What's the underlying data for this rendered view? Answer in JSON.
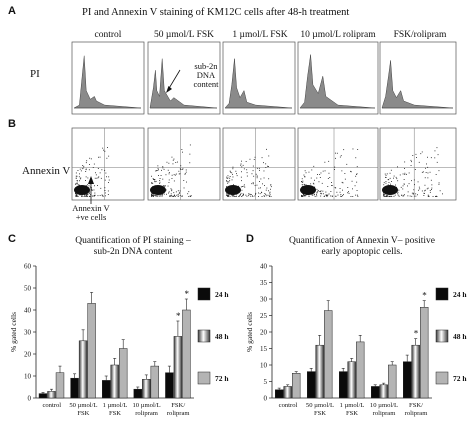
{
  "figure": {
    "panel_labels": [
      "A",
      "B",
      "C",
      "D"
    ],
    "title": "PI and Annexin V staining of KM12C cells after 48-h treatment",
    "conditions": [
      "control",
      "50 µmol/L FSK",
      "1 µmol/L FSK",
      "10 µmol/L rolipram",
      "FSK/rolipram"
    ],
    "row_labels": {
      "pi": "PI",
      "annexin": "Annexin V"
    },
    "annotations": {
      "sub2n": "sub-2n\nDNA\ncontent",
      "annexin_pos": "Annexin V\n+ve cells"
    },
    "colors": {
      "histogram": "#8a8a8a",
      "dots": "#222222",
      "bar_24h": "#0a0a0a",
      "bar_72h": "#b4b4b4"
    }
  },
  "chart_data": [
    {
      "type": "bar",
      "title": "Quantification of PI staining –\nsub-2n DNA content",
      "ylabel": "% gated cells",
      "ylim": [
        0,
        60
      ],
      "yticks": [
        0,
        10,
        20,
        30,
        40,
        50,
        60
      ],
      "categories": [
        "control",
        "50 µmol/L\nFSK",
        "1 µmol/L\nFSK",
        "10 µmol/L\nrolipram",
        "FSK/\nrolipram"
      ],
      "series": [
        {
          "name": "24 h",
          "values": [
            2,
            9,
            8,
            4,
            11.5
          ],
          "errors": [
            0.5,
            2,
            2,
            1,
            3
          ]
        },
        {
          "name": "48 h",
          "values": [
            3,
            26,
            15,
            8.5,
            28
          ],
          "errors": [
            1,
            5,
            3,
            2,
            7
          ]
        },
        {
          "name": "72 h",
          "values": [
            11.5,
            43,
            22.5,
            14.5,
            40
          ],
          "errors": [
            3,
            5,
            4,
            2,
            5
          ]
        }
      ],
      "significance": [
        "",
        "",
        "",
        "",
        "* *"
      ],
      "legend_position": "right"
    },
    {
      "type": "bar",
      "title": "Quantification of Annexin V– positive\nearly apoptopic cells.",
      "ylabel": "% gated cells",
      "ylim": [
        0,
        40
      ],
      "yticks": [
        0,
        5,
        10,
        15,
        20,
        25,
        30,
        35,
        40
      ],
      "categories": [
        "control",
        "50 µmol/L\nFSK",
        "1 µmol/L\nFSK",
        "10 µmol/L\nrolipram",
        "FSK/\nrolipram"
      ],
      "series": [
        {
          "name": "24 h",
          "values": [
            2.5,
            8,
            8,
            3.5,
            11
          ],
          "errors": [
            0.5,
            1,
            1,
            0.5,
            2
          ]
        },
        {
          "name": "48 h",
          "values": [
            3.5,
            16,
            11,
            4,
            16
          ],
          "errors": [
            0.5,
            3,
            1,
            0.5,
            2
          ]
        },
        {
          "name": "72 h",
          "values": [
            7.5,
            26.5,
            17,
            10,
            27.5
          ],
          "errors": [
            0.5,
            3,
            2,
            1,
            2
          ]
        }
      ],
      "significance": [
        "",
        "",
        "",
        "",
        "* *"
      ],
      "legend_position": "right"
    }
  ]
}
